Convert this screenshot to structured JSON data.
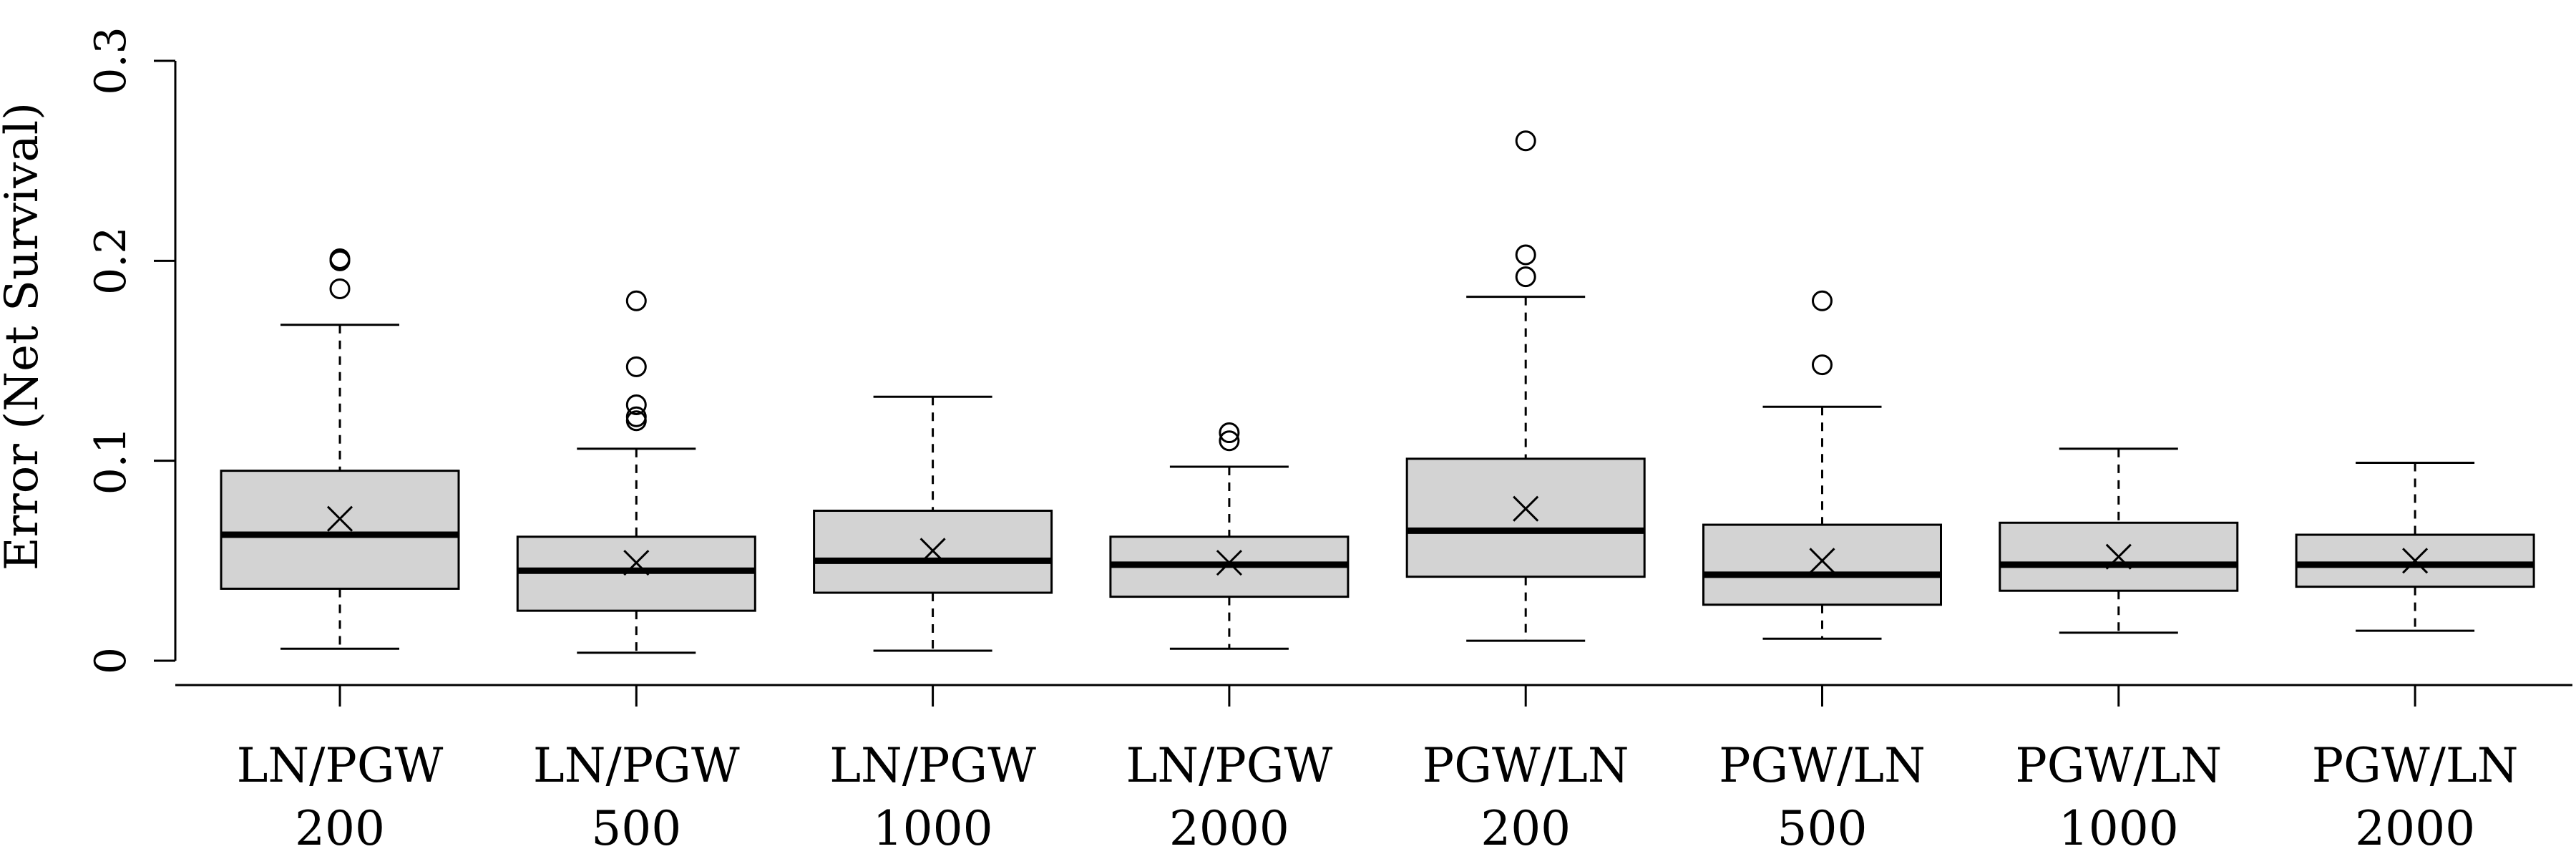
{
  "chart_data": {
    "type": "boxplot",
    "title": "",
    "xlabel": "",
    "ylabel": "Error (Net Survival)",
    "ylim": [
      0,
      0.3
    ],
    "yticks": [
      0,
      0.1,
      0.2,
      0.3
    ],
    "ytick_labels": [
      "0",
      "0.1",
      "0.2",
      "0.3"
    ],
    "grid": false,
    "legend": "none",
    "box_fill": "#d3d3d3",
    "stroke_color": "#000000",
    "mean_marker": "x",
    "groups": [
      {
        "label_line1": "LN/PGW",
        "label_line2": "200",
        "whisker_low": 0.006,
        "q1": 0.036,
        "median": 0.063,
        "q3": 0.095,
        "whisker_high": 0.168,
        "mean": 0.071,
        "outliers": [
          0.186,
          0.2,
          0.201
        ]
      },
      {
        "label_line1": "LN/PGW",
        "label_line2": "500",
        "whisker_low": 0.004,
        "q1": 0.025,
        "median": 0.045,
        "q3": 0.062,
        "whisker_high": 0.106,
        "mean": 0.049,
        "outliers": [
          0.12,
          0.122,
          0.128,
          0.147,
          0.18
        ]
      },
      {
        "label_line1": "LN/PGW",
        "label_line2": "1000",
        "whisker_low": 0.005,
        "q1": 0.034,
        "median": 0.05,
        "q3": 0.075,
        "whisker_high": 0.132,
        "mean": 0.055,
        "outliers": []
      },
      {
        "label_line1": "LN/PGW",
        "label_line2": "2000",
        "whisker_low": 0.006,
        "q1": 0.032,
        "median": 0.048,
        "q3": 0.062,
        "whisker_high": 0.097,
        "mean": 0.049,
        "outliers": [
          0.11,
          0.114
        ]
      },
      {
        "label_line1": "PGW/LN",
        "label_line2": "200",
        "whisker_low": 0.01,
        "q1": 0.042,
        "median": 0.065,
        "q3": 0.101,
        "whisker_high": 0.182,
        "mean": 0.076,
        "outliers": [
          0.192,
          0.203,
          0.26
        ]
      },
      {
        "label_line1": "PGW/LN",
        "label_line2": "500",
        "whisker_low": 0.011,
        "q1": 0.028,
        "median": 0.043,
        "q3": 0.068,
        "whisker_high": 0.127,
        "mean": 0.05,
        "outliers": [
          0.148,
          0.18
        ]
      },
      {
        "label_line1": "PGW/LN",
        "label_line2": "1000",
        "whisker_low": 0.014,
        "q1": 0.035,
        "median": 0.048,
        "q3": 0.069,
        "whisker_high": 0.106,
        "mean": 0.052,
        "outliers": []
      },
      {
        "label_line1": "PGW/LN",
        "label_line2": "2000",
        "whisker_low": 0.015,
        "q1": 0.037,
        "median": 0.048,
        "q3": 0.063,
        "whisker_high": 0.099,
        "mean": 0.05,
        "outliers": []
      }
    ]
  }
}
